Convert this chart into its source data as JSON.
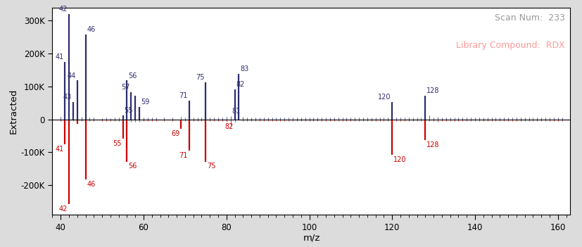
{
  "title_scan": "Scan Num:  233",
  "title_lib": "Library Compound:  RDX",
  "xlabel": "m/z",
  "ylabel": "Extracted",
  "xlim": [
    38,
    163
  ],
  "ylim": [
    -290000,
    340000
  ],
  "yticks": [
    -200000,
    -100000,
    0,
    100000,
    200000,
    300000
  ],
  "ytick_labels": [
    "-200K",
    "-100K",
    "0",
    "100K",
    "200K",
    "300K"
  ],
  "xticks": [
    40,
    60,
    80,
    100,
    120,
    140,
    160
  ],
  "bg_color": "#dcdcdc",
  "plot_bg_color": "#ffffff",
  "extracted_color": "#2d2d6e",
  "library_color": "#cc0000",
  "extracted_peaks": [
    {
      "mz": 41,
      "intensity": 175000
    },
    {
      "mz": 42,
      "intensity": 320000
    },
    {
      "mz": 43,
      "intensity": 52000
    },
    {
      "mz": 44,
      "intensity": 118000
    },
    {
      "mz": 46,
      "intensity": 258000
    },
    {
      "mz": 55,
      "intensity": 12000
    },
    {
      "mz": 56,
      "intensity": 118000
    },
    {
      "mz": 57,
      "intensity": 82000
    },
    {
      "mz": 58,
      "intensity": 72000
    },
    {
      "mz": 59,
      "intensity": 38000
    },
    {
      "mz": 71,
      "intensity": 58000
    },
    {
      "mz": 75,
      "intensity": 112000
    },
    {
      "mz": 82,
      "intensity": 92000
    },
    {
      "mz": 83,
      "intensity": 138000
    },
    {
      "mz": 120,
      "intensity": 52000
    },
    {
      "mz": 128,
      "intensity": 72000
    }
  ],
  "library_peaks": [
    {
      "mz": 41,
      "intensity": -75000
    },
    {
      "mz": 42,
      "intensity": -258000
    },
    {
      "mz": 44,
      "intensity": -14000
    },
    {
      "mz": 46,
      "intensity": -182000
    },
    {
      "mz": 55,
      "intensity": -58000
    },
    {
      "mz": 56,
      "intensity": -128000
    },
    {
      "mz": 69,
      "intensity": -28000
    },
    {
      "mz": 71,
      "intensity": -95000
    },
    {
      "mz": 75,
      "intensity": -128000
    },
    {
      "mz": 120,
      "intensity": -108000
    },
    {
      "mz": 128,
      "intensity": -62000
    }
  ],
  "small_extracted_peaks": [
    {
      "mz": 40,
      "intensity": 8000
    },
    {
      "mz": 45,
      "intensity": 8000
    },
    {
      "mz": 47,
      "intensity": 6000
    },
    {
      "mz": 48,
      "intensity": 5000
    },
    {
      "mz": 50,
      "intensity": 4000
    },
    {
      "mz": 51,
      "intensity": 5000
    },
    {
      "mz": 52,
      "intensity": 4000
    },
    {
      "mz": 53,
      "intensity": 5000
    },
    {
      "mz": 54,
      "intensity": 6000
    },
    {
      "mz": 60,
      "intensity": 6000
    },
    {
      "mz": 61,
      "intensity": 5000
    },
    {
      "mz": 62,
      "intensity": 5000
    },
    {
      "mz": 63,
      "intensity": 5000
    },
    {
      "mz": 65,
      "intensity": 5000
    },
    {
      "mz": 67,
      "intensity": 5000
    },
    {
      "mz": 69,
      "intensity": 8000
    },
    {
      "mz": 70,
      "intensity": 5000
    },
    {
      "mz": 72,
      "intensity": 5000
    },
    {
      "mz": 73,
      "intensity": 5000
    },
    {
      "mz": 74,
      "intensity": 5000
    },
    {
      "mz": 76,
      "intensity": 5000
    },
    {
      "mz": 77,
      "intensity": 5000
    },
    {
      "mz": 78,
      "intensity": 5000
    },
    {
      "mz": 79,
      "intensity": 5000
    },
    {
      "mz": 80,
      "intensity": 8000
    },
    {
      "mz": 81,
      "intensity": 10000
    },
    {
      "mz": 84,
      "intensity": 8000
    },
    {
      "mz": 85,
      "intensity": 6000
    },
    {
      "mz": 86,
      "intensity": 5000
    },
    {
      "mz": 87,
      "intensity": 5000
    },
    {
      "mz": 88,
      "intensity": 5000
    },
    {
      "mz": 89,
      "intensity": 5000
    },
    {
      "mz": 90,
      "intensity": 5000
    },
    {
      "mz": 91,
      "intensity": 5000
    },
    {
      "mz": 92,
      "intensity": 5000
    },
    {
      "mz": 93,
      "intensity": 5000
    },
    {
      "mz": 94,
      "intensity": 5000
    },
    {
      "mz": 95,
      "intensity": 5000
    },
    {
      "mz": 96,
      "intensity": 5000
    },
    {
      "mz": 97,
      "intensity": 5000
    },
    {
      "mz": 98,
      "intensity": 5000
    },
    {
      "mz": 99,
      "intensity": 5000
    },
    {
      "mz": 100,
      "intensity": 5000
    },
    {
      "mz": 101,
      "intensity": 5000
    },
    {
      "mz": 102,
      "intensity": 5000
    },
    {
      "mz": 103,
      "intensity": 5000
    },
    {
      "mz": 104,
      "intensity": 5000
    },
    {
      "mz": 105,
      "intensity": 5000
    },
    {
      "mz": 106,
      "intensity": 5000
    },
    {
      "mz": 107,
      "intensity": 5000
    },
    {
      "mz": 108,
      "intensity": 5000
    },
    {
      "mz": 109,
      "intensity": 5000
    },
    {
      "mz": 110,
      "intensity": 5000
    },
    {
      "mz": 111,
      "intensity": 5000
    },
    {
      "mz": 112,
      "intensity": 5000
    },
    {
      "mz": 113,
      "intensity": 5000
    },
    {
      "mz": 114,
      "intensity": 5000
    },
    {
      "mz": 115,
      "intensity": 5000
    },
    {
      "mz": 116,
      "intensity": 5000
    },
    {
      "mz": 117,
      "intensity": 5000
    },
    {
      "mz": 118,
      "intensity": 5000
    },
    {
      "mz": 119,
      "intensity": 5000
    },
    {
      "mz": 121,
      "intensity": 5000
    },
    {
      "mz": 122,
      "intensity": 5000
    },
    {
      "mz": 123,
      "intensity": 5000
    },
    {
      "mz": 124,
      "intensity": 5000
    },
    {
      "mz": 125,
      "intensity": 5000
    },
    {
      "mz": 126,
      "intensity": 5000
    },
    {
      "mz": 127,
      "intensity": 5000
    },
    {
      "mz": 129,
      "intensity": 12000
    },
    {
      "mz": 130,
      "intensity": 5000
    },
    {
      "mz": 131,
      "intensity": 8000
    },
    {
      "mz": 132,
      "intensity": 5000
    },
    {
      "mz": 133,
      "intensity": 5000
    },
    {
      "mz": 134,
      "intensity": 5000
    },
    {
      "mz": 135,
      "intensity": 5000
    },
    {
      "mz": 136,
      "intensity": 5000
    },
    {
      "mz": 137,
      "intensity": 5000
    },
    {
      "mz": 138,
      "intensity": 5000
    },
    {
      "mz": 139,
      "intensity": 5000
    },
    {
      "mz": 140,
      "intensity": 5000
    },
    {
      "mz": 141,
      "intensity": 5000
    },
    {
      "mz": 142,
      "intensity": 5000
    },
    {
      "mz": 143,
      "intensity": 5000
    },
    {
      "mz": 144,
      "intensity": 5000
    },
    {
      "mz": 145,
      "intensity": 5000
    },
    {
      "mz": 146,
      "intensity": 5000
    },
    {
      "mz": 147,
      "intensity": 5000
    },
    {
      "mz": 148,
      "intensity": 5000
    },
    {
      "mz": 149,
      "intensity": 5000
    },
    {
      "mz": 150,
      "intensity": 5000
    },
    {
      "mz": 151,
      "intensity": 5000
    },
    {
      "mz": 152,
      "intensity": 5000
    },
    {
      "mz": 153,
      "intensity": 5000
    },
    {
      "mz": 154,
      "intensity": 5000
    },
    {
      "mz": 155,
      "intensity": 5000
    },
    {
      "mz": 156,
      "intensity": 5000
    },
    {
      "mz": 157,
      "intensity": 5000
    },
    {
      "mz": 158,
      "intensity": 5000
    },
    {
      "mz": 159,
      "intensity": 5000
    },
    {
      "mz": 160,
      "intensity": 5000
    },
    {
      "mz": 161,
      "intensity": 5000
    }
  ],
  "small_library_peaks": [
    {
      "mz": 40,
      "intensity": -5000
    },
    {
      "mz": 43,
      "intensity": -6000
    },
    {
      "mz": 45,
      "intensity": -5000
    },
    {
      "mz": 47,
      "intensity": -5000
    },
    {
      "mz": 48,
      "intensity": -5000
    },
    {
      "mz": 50,
      "intensity": -5000
    },
    {
      "mz": 51,
      "intensity": -5000
    },
    {
      "mz": 52,
      "intensity": -5000
    },
    {
      "mz": 53,
      "intensity": -5000
    },
    {
      "mz": 54,
      "intensity": -5000
    },
    {
      "mz": 57,
      "intensity": -8000
    },
    {
      "mz": 58,
      "intensity": -8000
    },
    {
      "mz": 59,
      "intensity": -8000
    },
    {
      "mz": 60,
      "intensity": -5000
    },
    {
      "mz": 61,
      "intensity": -5000
    },
    {
      "mz": 62,
      "intensity": -5000
    },
    {
      "mz": 63,
      "intensity": -5000
    },
    {
      "mz": 65,
      "intensity": -5000
    },
    {
      "mz": 67,
      "intensity": -5000
    },
    {
      "mz": 70,
      "intensity": -5000
    },
    {
      "mz": 72,
      "intensity": -5000
    },
    {
      "mz": 73,
      "intensity": -5000
    },
    {
      "mz": 74,
      "intensity": -5000
    },
    {
      "mz": 76,
      "intensity": -5000
    },
    {
      "mz": 77,
      "intensity": -5000
    },
    {
      "mz": 78,
      "intensity": -5000
    },
    {
      "mz": 79,
      "intensity": -5000
    },
    {
      "mz": 80,
      "intensity": -8000
    },
    {
      "mz": 81,
      "intensity": -18000
    },
    {
      "mz": 82,
      "intensity": -8000
    },
    {
      "mz": 84,
      "intensity": -5000
    },
    {
      "mz": 85,
      "intensity": -5000
    },
    {
      "mz": 86,
      "intensity": -5000
    },
    {
      "mz": 87,
      "intensity": -5000
    },
    {
      "mz": 88,
      "intensity": -5000
    },
    {
      "mz": 89,
      "intensity": -5000
    },
    {
      "mz": 90,
      "intensity": -5000
    },
    {
      "mz": 91,
      "intensity": -5000
    },
    {
      "mz": 92,
      "intensity": -5000
    },
    {
      "mz": 93,
      "intensity": -5000
    },
    {
      "mz": 94,
      "intensity": -5000
    },
    {
      "mz": 95,
      "intensity": -5000
    },
    {
      "mz": 96,
      "intensity": -5000
    },
    {
      "mz": 97,
      "intensity": -5000
    },
    {
      "mz": 98,
      "intensity": -5000
    },
    {
      "mz": 99,
      "intensity": -5000
    },
    {
      "mz": 100,
      "intensity": -5000
    },
    {
      "mz": 101,
      "intensity": -5000
    },
    {
      "mz": 102,
      "intensity": -5000
    },
    {
      "mz": 103,
      "intensity": -5000
    },
    {
      "mz": 104,
      "intensity": -5000
    },
    {
      "mz": 105,
      "intensity": -5000
    },
    {
      "mz": 106,
      "intensity": -5000
    },
    {
      "mz": 107,
      "intensity": -5000
    },
    {
      "mz": 108,
      "intensity": -5000
    },
    {
      "mz": 109,
      "intensity": -5000
    },
    {
      "mz": 110,
      "intensity": -5000
    },
    {
      "mz": 111,
      "intensity": -5000
    },
    {
      "mz": 112,
      "intensity": -5000
    },
    {
      "mz": 113,
      "intensity": -5000
    },
    {
      "mz": 114,
      "intensity": -5000
    },
    {
      "mz": 115,
      "intensity": -5000
    },
    {
      "mz": 116,
      "intensity": -5000
    },
    {
      "mz": 117,
      "intensity": -5000
    },
    {
      "mz": 118,
      "intensity": -5000
    },
    {
      "mz": 119,
      "intensity": -5000
    },
    {
      "mz": 121,
      "intensity": -5000
    },
    {
      "mz": 122,
      "intensity": -5000
    },
    {
      "mz": 123,
      "intensity": -5000
    },
    {
      "mz": 124,
      "intensity": -5000
    },
    {
      "mz": 125,
      "intensity": -5000
    },
    {
      "mz": 126,
      "intensity": -5000
    },
    {
      "mz": 127,
      "intensity": -5000
    },
    {
      "mz": 129,
      "intensity": -5000
    },
    {
      "mz": 130,
      "intensity": -5000
    },
    {
      "mz": 131,
      "intensity": -8000
    },
    {
      "mz": 132,
      "intensity": -5000
    },
    {
      "mz": 133,
      "intensity": -5000
    },
    {
      "mz": 134,
      "intensity": -5000
    },
    {
      "mz": 135,
      "intensity": -5000
    },
    {
      "mz": 136,
      "intensity": -5000
    },
    {
      "mz": 137,
      "intensity": -5000
    },
    {
      "mz": 138,
      "intensity": -5000
    },
    {
      "mz": 139,
      "intensity": -5000
    },
    {
      "mz": 140,
      "intensity": -5000
    },
    {
      "mz": 141,
      "intensity": -5000
    },
    {
      "mz": 142,
      "intensity": -5000
    },
    {
      "mz": 143,
      "intensity": -5000
    },
    {
      "mz": 144,
      "intensity": -5000
    },
    {
      "mz": 145,
      "intensity": -5000
    },
    {
      "mz": 146,
      "intensity": -5000
    },
    {
      "mz": 147,
      "intensity": -5000
    },
    {
      "mz": 148,
      "intensity": -5000
    },
    {
      "mz": 149,
      "intensity": -5000
    },
    {
      "mz": 150,
      "intensity": -5000
    },
    {
      "mz": 151,
      "intensity": -5000
    },
    {
      "mz": 152,
      "intensity": -5000
    },
    {
      "mz": 153,
      "intensity": -5000
    },
    {
      "mz": 154,
      "intensity": -5000
    },
    {
      "mz": 155,
      "intensity": -5000
    },
    {
      "mz": 156,
      "intensity": -5000
    },
    {
      "mz": 157,
      "intensity": -5000
    },
    {
      "mz": 158,
      "intensity": -5000
    },
    {
      "mz": 159,
      "intensity": -5000
    },
    {
      "mz": 160,
      "intensity": -5000
    },
    {
      "mz": 161,
      "intensity": -5000
    }
  ],
  "extracted_labels": [
    {
      "mz": 42,
      "intensity": 320000,
      "label": "42",
      "ha": "right",
      "va": "bottom"
    },
    {
      "mz": 46,
      "intensity": 258000,
      "label": "46",
      "ha": "left",
      "va": "bottom"
    },
    {
      "mz": 41,
      "intensity": 175000,
      "label": "41",
      "ha": "right",
      "va": "bottom"
    },
    {
      "mz": 44,
      "intensity": 118000,
      "label": "44",
      "ha": "right",
      "va": "bottom"
    },
    {
      "mz": 43,
      "intensity": 52000,
      "label": "43",
      "ha": "right",
      "va": "bottom"
    },
    {
      "mz": 55,
      "intensity": 12000,
      "label": "55",
      "ha": "left",
      "va": "bottom"
    },
    {
      "mz": 57,
      "intensity": 82000,
      "label": "57",
      "ha": "right",
      "va": "bottom"
    },
    {
      "mz": 56,
      "intensity": 118000,
      "label": "56",
      "ha": "left",
      "va": "bottom"
    },
    {
      "mz": 59,
      "intensity": 38000,
      "label": "59",
      "ha": "left",
      "va": "bottom"
    },
    {
      "mz": 71,
      "intensity": 58000,
      "label": "71",
      "ha": "right",
      "va": "bottom"
    },
    {
      "mz": 75,
      "intensity": 112000,
      "label": "75",
      "ha": "right",
      "va": "bottom"
    },
    {
      "mz": 82,
      "intensity": 92000,
      "label": "82",
      "ha": "left",
      "va": "bottom"
    },
    {
      "mz": 83,
      "intensity": 138000,
      "label": "83",
      "ha": "left",
      "va": "bottom"
    },
    {
      "mz": 81,
      "intensity": 10000,
      "label": "81",
      "ha": "left",
      "va": "bottom"
    },
    {
      "mz": 120,
      "intensity": 52000,
      "label": "120",
      "ha": "right",
      "va": "bottom"
    },
    {
      "mz": 128,
      "intensity": 72000,
      "label": "128",
      "ha": "left",
      "va": "bottom"
    }
  ],
  "library_labels": [
    {
      "mz": 42,
      "intensity": -258000,
      "label": "42",
      "ha": "right",
      "va": "top"
    },
    {
      "mz": 46,
      "intensity": -182000,
      "label": "46",
      "ha": "left",
      "va": "top"
    },
    {
      "mz": 41,
      "intensity": -75000,
      "label": "41",
      "ha": "right",
      "va": "top"
    },
    {
      "mz": 55,
      "intensity": -58000,
      "label": "55",
      "ha": "right",
      "va": "top"
    },
    {
      "mz": 56,
      "intensity": -128000,
      "label": "56",
      "ha": "left",
      "va": "top"
    },
    {
      "mz": 69,
      "intensity": -28000,
      "label": "69",
      "ha": "right",
      "va": "top"
    },
    {
      "mz": 71,
      "intensity": -95000,
      "label": "71",
      "ha": "right",
      "va": "top"
    },
    {
      "mz": 75,
      "intensity": -128000,
      "label": "75",
      "ha": "left",
      "va": "top"
    },
    {
      "mz": 82,
      "intensity": -8000,
      "label": "82",
      "ha": "right",
      "va": "top"
    },
    {
      "mz": 120,
      "intensity": -108000,
      "label": "120",
      "ha": "left",
      "va": "top"
    },
    {
      "mz": 128,
      "intensity": -62000,
      "label": "128",
      "ha": "left",
      "va": "top"
    }
  ]
}
